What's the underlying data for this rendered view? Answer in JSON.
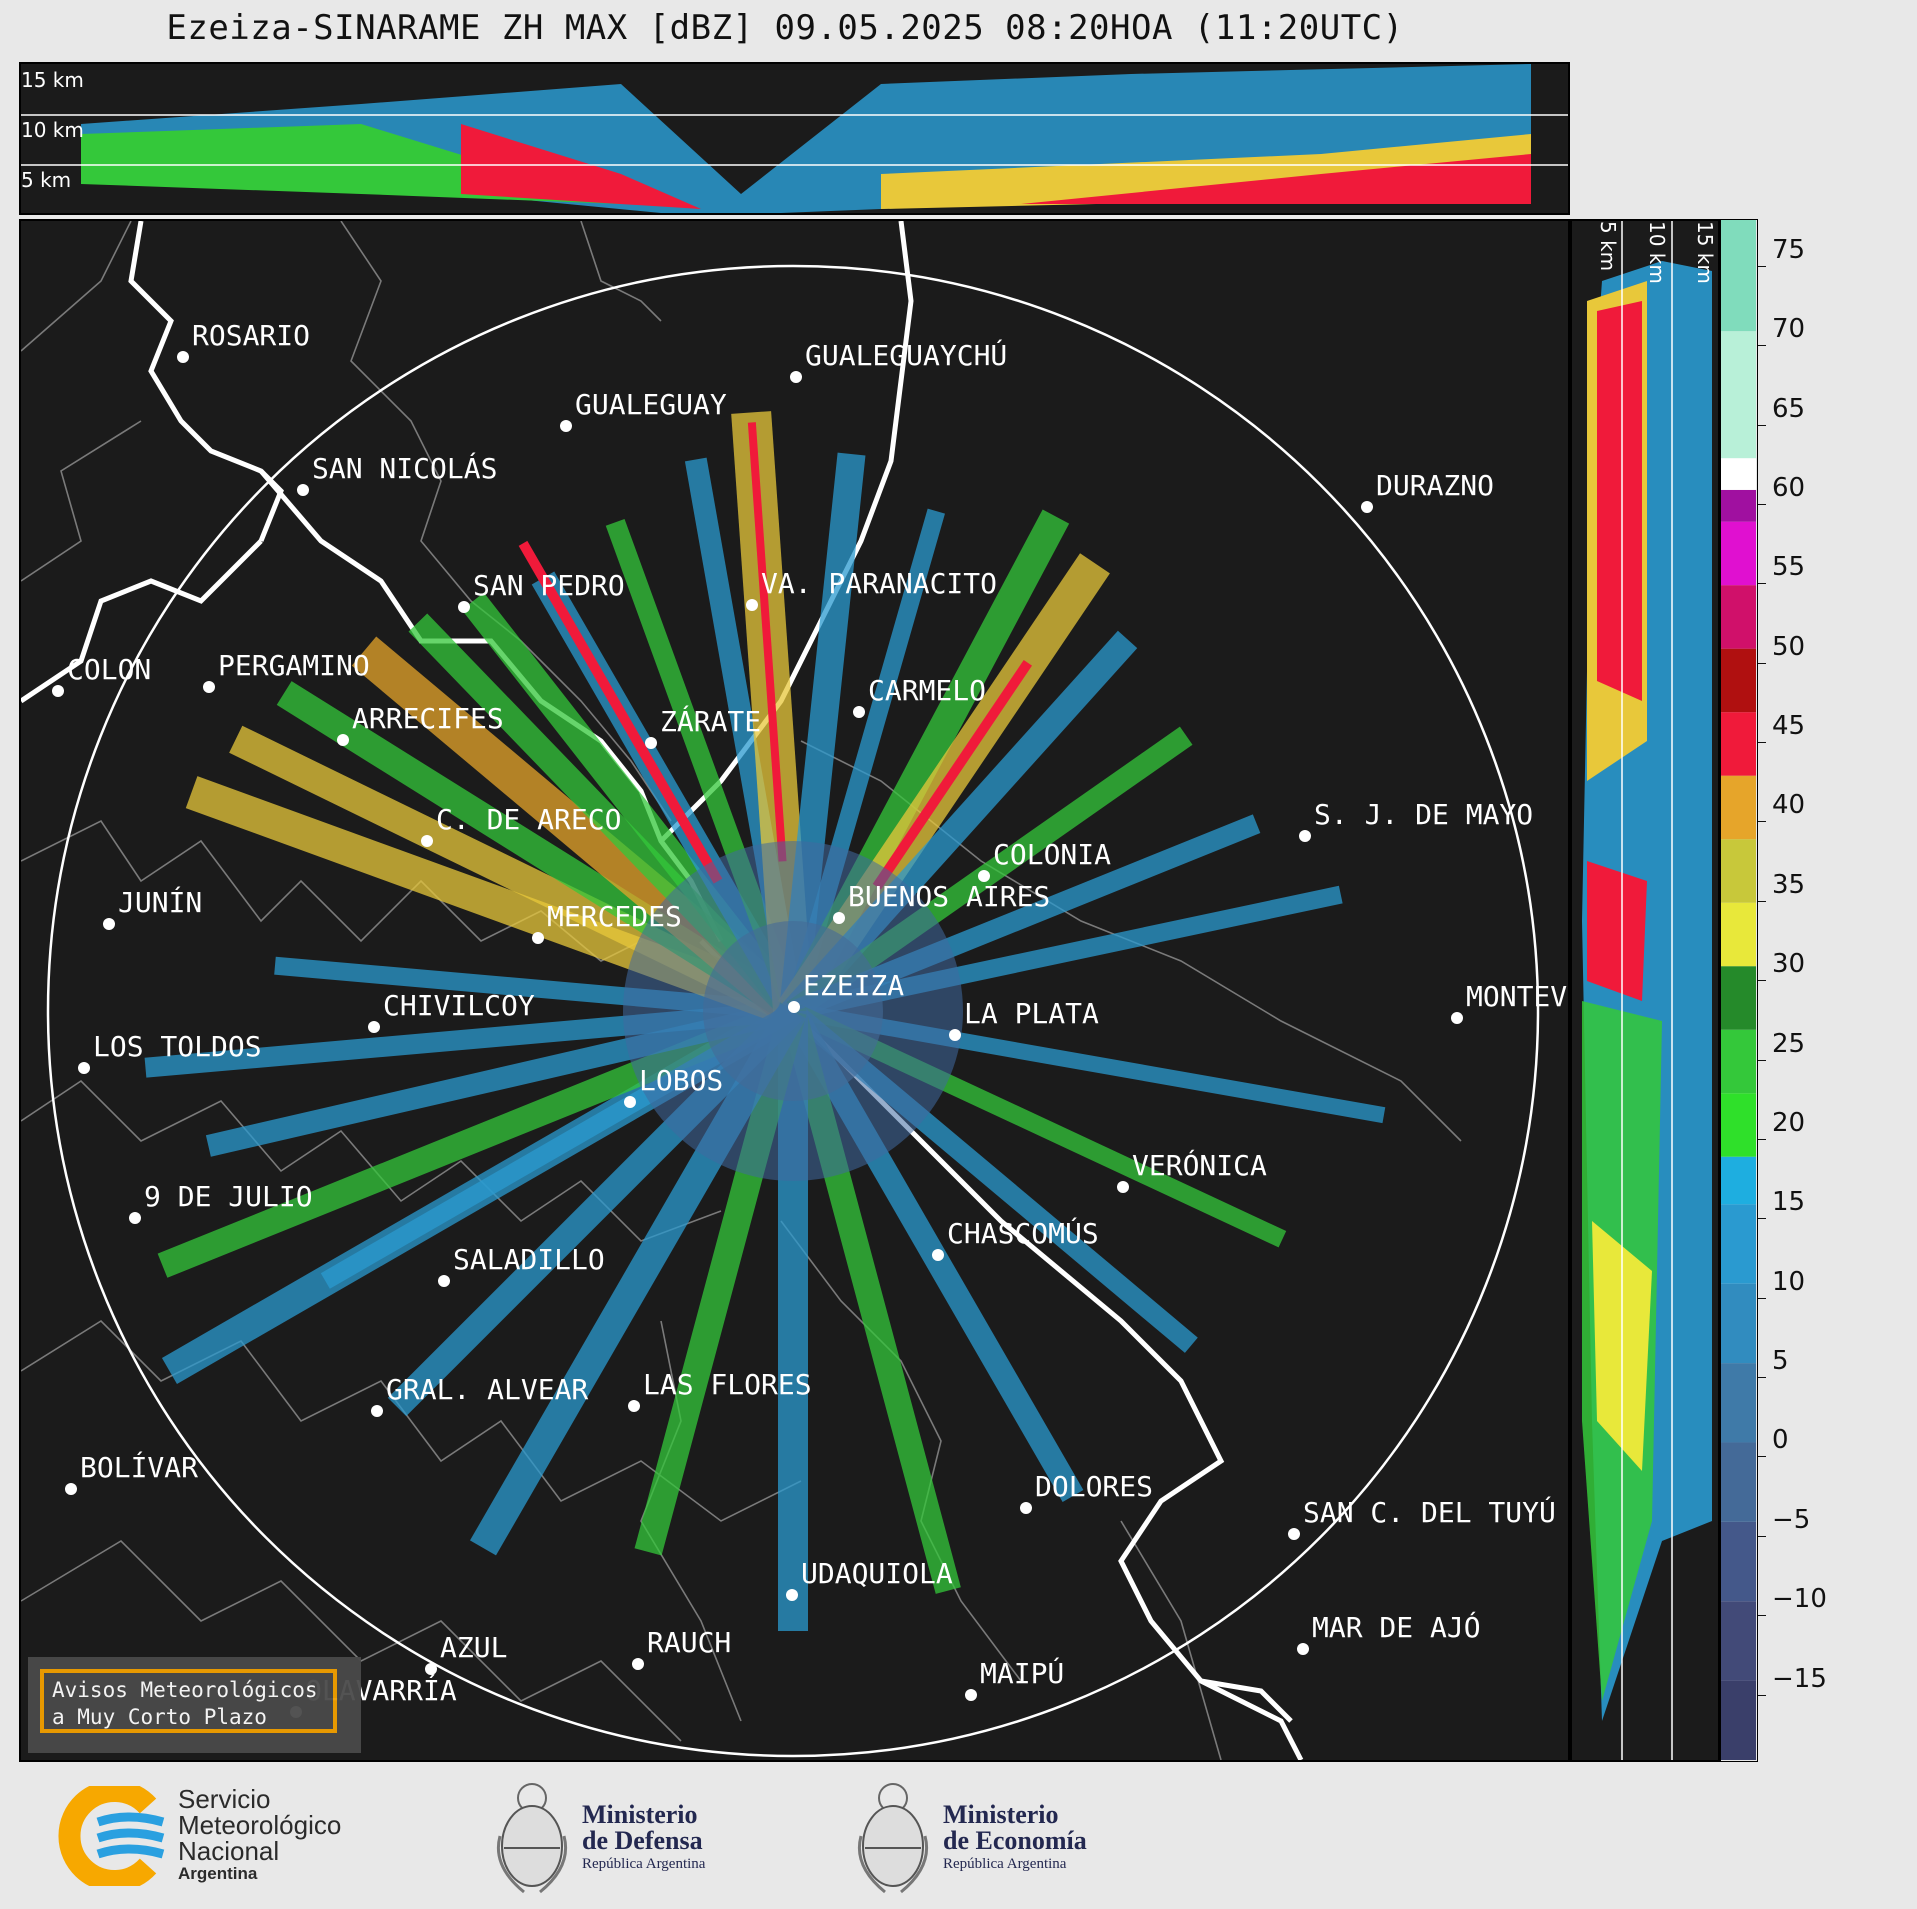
{
  "title": "Ezeiza-SINARAME ZH MAX [dBZ] 09.05.2025 08:20HOA (11:20UTC)",
  "top_panel": {
    "height_labels": [
      "15 km",
      "10 km",
      "5 km"
    ]
  },
  "side_panel": {
    "height_labels": [
      "5 km",
      "10 km",
      "15 km"
    ]
  },
  "colorbar": {
    "unit": "dBZ",
    "ticks": [
      "75",
      "70",
      "65",
      "60",
      "55",
      "50",
      "45",
      "40",
      "35",
      "30",
      "25",
      "20",
      "15",
      "10",
      "5",
      "0",
      "−5",
      "−10",
      "−15"
    ],
    "range": [
      -20,
      77
    ],
    "stops": [
      {
        "from": -20,
        "to": -15,
        "color": "#3a3f6a"
      },
      {
        "from": -15,
        "to": -10,
        "color": "#424a78"
      },
      {
        "from": -10,
        "to": -5,
        "color": "#44588a"
      },
      {
        "from": -5,
        "to": 0,
        "color": "#446a98"
      },
      {
        "from": 0,
        "to": 5,
        "color": "#3f7aa8"
      },
      {
        "from": 5,
        "to": 10,
        "color": "#318cbf"
      },
      {
        "from": 10,
        "to": 15,
        "color": "#2a9ad0"
      },
      {
        "from": 15,
        "to": 18,
        "color": "#1eaee0"
      },
      {
        "from": 18,
        "to": 22,
        "color": "#2fe02a"
      },
      {
        "from": 22,
        "to": 26,
        "color": "#34c83a"
      },
      {
        "from": 26,
        "to": 30,
        "color": "#258a2a"
      },
      {
        "from": 30,
        "to": 34,
        "color": "#e8e83a"
      },
      {
        "from": 34,
        "to": 38,
        "color": "#c8c83a"
      },
      {
        "from": 38,
        "to": 42,
        "color": "#e6a52a"
      },
      {
        "from": 42,
        "to": 46,
        "color": "#f01a3a"
      },
      {
        "from": 46,
        "to": 50,
        "color": "#b01010"
      },
      {
        "from": 50,
        "to": 54,
        "color": "#d0106a"
      },
      {
        "from": 54,
        "to": 58,
        "color": "#e010d0"
      },
      {
        "from": 58,
        "to": 60,
        "color": "#a010a0"
      },
      {
        "from": 60,
        "to": 62,
        "color": "#ffffff"
      },
      {
        "from": 62,
        "to": 70,
        "color": "#b8f0d8"
      },
      {
        "from": 70,
        "to": 77,
        "color": "#80dcbc"
      }
    ]
  },
  "cities": [
    {
      "name": "ROSARIO"
    },
    {
      "name": "GUALEGUAYCHÚ"
    },
    {
      "name": "GUALEGUAY"
    },
    {
      "name": "SAN NICOLÁS"
    },
    {
      "name": "DURAZNO"
    },
    {
      "name": "SAN PEDRO"
    },
    {
      "name": "VA. PARANACITO"
    },
    {
      "name": "COLON"
    },
    {
      "name": "PERGAMINO"
    },
    {
      "name": "CARMELO"
    },
    {
      "name": "ARRECIFES"
    },
    {
      "name": "ZÁRATE"
    },
    {
      "name": "S. J. DE MAYO"
    },
    {
      "name": "C. DE ARECO"
    },
    {
      "name": "COLONIA"
    },
    {
      "name": "JUNÍN"
    },
    {
      "name": "BUENOS AIRES"
    },
    {
      "name": "MERCEDES"
    },
    {
      "name": "EZEIZA"
    },
    {
      "name": "MONTEV"
    },
    {
      "name": "CHIVILCOY"
    },
    {
      "name": "LA PLATA"
    },
    {
      "name": "LOS TOLDOS"
    },
    {
      "name": "LOBOS"
    },
    {
      "name": "VERÓNICA"
    },
    {
      "name": "9 DE JULIO"
    },
    {
      "name": "CHASCOMÚS"
    },
    {
      "name": "SALADILLO"
    },
    {
      "name": "GRAL. ALVEAR"
    },
    {
      "name": "LAS FLORES"
    },
    {
      "name": "BOLÍVAR"
    },
    {
      "name": "DOLORES"
    },
    {
      "name": "SAN C. DEL TUYÚ"
    },
    {
      "name": "UDAQUIOLA"
    },
    {
      "name": "MAR DE AJÓ"
    },
    {
      "name": "AZUL"
    },
    {
      "name": "RAUCH"
    },
    {
      "name": "OLAVARRÍA"
    },
    {
      "name": "MAIPÚ"
    }
  ],
  "warning_box": {
    "line1": "Avisos Meteorológicos",
    "line2": "a Muy Corto Plazo"
  },
  "footer": {
    "smn": {
      "line1": "Servicio",
      "line2": "Meteorológico",
      "line3": "Nacional",
      "line4": "Argentina"
    },
    "defensa": {
      "line1": "Ministerio",
      "line2": "de Defensa",
      "line3": "República Argentina"
    },
    "economia": {
      "line1": "Ministerio",
      "line2": "de Economía",
      "line3": "República Argentina"
    },
    "colors": {
      "smn_orange": "#f7a800",
      "smn_blue": "#2aa0e0",
      "ministry_text": "#232850"
    }
  }
}
